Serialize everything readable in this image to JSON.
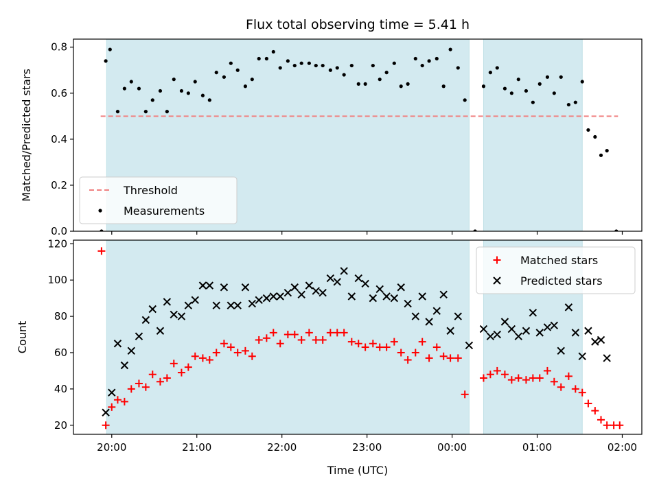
{
  "chart_data": {
    "title": "Flux total observing time = 5.41 h",
    "xlabel": "Time (UTC)",
    "x_unit": "hours since 00:00 UTC",
    "xlim": [
      -4.45,
      2.23
    ],
    "x_ticks": [
      {
        "value": -4,
        "label": "20:00"
      },
      {
        "value": -3,
        "label": "21:00"
      },
      {
        "value": -2,
        "label": "22:00"
      },
      {
        "value": -1,
        "label": "23:00"
      },
      {
        "value": 0,
        "label": "00:00"
      },
      {
        "value": 1,
        "label": "01:00"
      },
      {
        "value": 2,
        "label": "02:00"
      }
    ],
    "observing_windows": [
      {
        "start": -4.06,
        "end": 0.2
      },
      {
        "start": 0.37,
        "end": 1.53
      }
    ],
    "window_color": "#d3eaf0",
    "panels": [
      {
        "name": "ratio",
        "type": "scatter",
        "ylabel": "Matched/Predicted stars",
        "ylim": [
          0,
          0.835
        ],
        "y_ticks": [
          "0.0",
          "0.2",
          "0.4",
          "0.6",
          "0.8"
        ],
        "y_tick_values": [
          0,
          0.2,
          0.4,
          0.6,
          0.8
        ],
        "legend": {
          "position": "lower-left",
          "entries": [
            "Threshold",
            "Measurements"
          ]
        },
        "threshold": {
          "name": "Threshold",
          "value": 0.5,
          "x_start": -4.13,
          "x_end": 1.95,
          "color": "#f08080"
        },
        "series": [
          {
            "name": "Measurements",
            "color": "#000000",
            "marker": "dot",
            "x": [
              -4.12,
              -4.07,
              -4.02,
              -3.93,
              -3.85,
              -3.77,
              -3.68,
              -3.6,
              -3.52,
              -3.43,
              -3.35,
              -3.27,
              -3.18,
              -3.1,
              -3.02,
              -2.93,
              -2.85,
              -2.77,
              -2.68,
              -2.6,
              -2.52,
              -2.43,
              -2.35,
              -2.27,
              -2.18,
              -2.1,
              -2.02,
              -1.93,
              -1.85,
              -1.77,
              -1.68,
              -1.6,
              -1.52,
              -1.43,
              -1.35,
              -1.27,
              -1.18,
              -1.1,
              -1.02,
              -0.93,
              -0.85,
              -0.77,
              -0.68,
              -0.6,
              -0.52,
              -0.43,
              -0.35,
              -0.27,
              -0.18,
              -0.1,
              -0.02,
              0.07,
              0.15,
              0.27,
              0.37,
              0.45,
              0.53,
              0.62,
              0.7,
              0.78,
              0.87,
              0.95,
              1.03,
              1.12,
              1.2,
              1.28,
              1.37,
              1.45,
              1.53,
              1.6,
              1.68,
              1.75,
              1.82,
              1.93
            ],
            "y": [
              0.0,
              0.74,
              0.79,
              0.52,
              0.62,
              0.65,
              0.62,
              0.52,
              0.57,
              0.61,
              0.52,
              0.66,
              0.61,
              0.6,
              0.65,
              0.59,
              0.57,
              0.69,
              0.67,
              0.73,
              0.7,
              0.63,
              0.66,
              0.75,
              0.75,
              0.78,
              0.71,
              0.74,
              0.72,
              0.73,
              0.73,
              0.72,
              0.72,
              0.7,
              0.71,
              0.68,
              0.72,
              0.64,
              0.64,
              0.72,
              0.66,
              0.69,
              0.73,
              0.63,
              0.64,
              0.75,
              0.72,
              0.74,
              0.75,
              0.63,
              0.79,
              0.71,
              0.57,
              0.0,
              0.63,
              0.69,
              0.71,
              0.62,
              0.6,
              0.66,
              0.61,
              0.56,
              0.64,
              0.67,
              0.6,
              0.67,
              0.55,
              0.56,
              0.65,
              0.44,
              0.41,
              0.33,
              0.35,
              0.0
            ]
          }
        ]
      },
      {
        "name": "counts",
        "type": "scatter",
        "ylabel": "Count",
        "ylim": [
          15,
          122
        ],
        "y_ticks": [
          "20",
          "40",
          "60",
          "80",
          "100",
          "120"
        ],
        "y_tick_values": [
          20,
          40,
          60,
          80,
          100,
          120
        ],
        "legend": {
          "position": "upper-right",
          "entries": [
            "Matched stars",
            "Predicted stars"
          ]
        },
        "series": [
          {
            "name": "Matched stars",
            "color": "#ff0000",
            "marker": "plus",
            "x": [
              -4.12,
              -4.07,
              -4.0,
              -3.93,
              -3.85,
              -3.77,
              -3.68,
              -3.6,
              -3.52,
              -3.43,
              -3.35,
              -3.27,
              -3.18,
              -3.1,
              -3.02,
              -2.93,
              -2.85,
              -2.77,
              -2.68,
              -2.6,
              -2.52,
              -2.43,
              -2.35,
              -2.27,
              -2.18,
              -2.1,
              -2.02,
              -1.93,
              -1.85,
              -1.77,
              -1.68,
              -1.6,
              -1.52,
              -1.43,
              -1.35,
              -1.27,
              -1.18,
              -1.1,
              -1.02,
              -0.93,
              -0.85,
              -0.77,
              -0.68,
              -0.6,
              -0.52,
              -0.43,
              -0.35,
              -0.27,
              -0.18,
              -0.1,
              -0.02,
              0.07,
              0.15,
              0.37,
              0.45,
              0.53,
              0.62,
              0.7,
              0.78,
              0.87,
              0.95,
              1.03,
              1.12,
              1.2,
              1.28,
              1.37,
              1.45,
              1.53,
              1.6,
              1.68,
              1.75,
              1.82,
              1.9,
              1.97
            ],
            "y": [
              116,
              20,
              30,
              34,
              33,
              40,
              43,
              41,
              48,
              44,
              46,
              54,
              49,
              52,
              58,
              57,
              56,
              60,
              65,
              63,
              60,
              61,
              58,
              67,
              68,
              71,
              65,
              70,
              70,
              67,
              71,
              67,
              67,
              71,
              71,
              71,
              66,
              65,
              63,
              65,
              63,
              63,
              66,
              60,
              56,
              60,
              66,
              57,
              63,
              58,
              57,
              57,
              37,
              46,
              48,
              50,
              48,
              45,
              46,
              45,
              46,
              46,
              50,
              44,
              41,
              47,
              40,
              38,
              32,
              28,
              23,
              20,
              20,
              20
            ]
          },
          {
            "name": "Predicted stars",
            "color": "#000000",
            "marker": "x",
            "x": [
              -4.07,
              -4.0,
              -3.93,
              -3.85,
              -3.77,
              -3.68,
              -3.6,
              -3.52,
              -3.43,
              -3.35,
              -3.27,
              -3.18,
              -3.1,
              -3.02,
              -2.93,
              -2.85,
              -2.77,
              -2.68,
              -2.6,
              -2.52,
              -2.43,
              -2.35,
              -2.27,
              -2.18,
              -2.1,
              -2.02,
              -1.93,
              -1.85,
              -1.77,
              -1.68,
              -1.6,
              -1.52,
              -1.43,
              -1.35,
              -1.27,
              -1.18,
              -1.1,
              -1.02,
              -0.93,
              -0.85,
              -0.77,
              -0.68,
              -0.6,
              -0.52,
              -0.43,
              -0.35,
              -0.27,
              -0.18,
              -0.1,
              -0.02,
              0.07,
              0.2,
              0.37,
              0.45,
              0.53,
              0.62,
              0.7,
              0.78,
              0.87,
              0.95,
              1.03,
              1.12,
              1.2,
              1.28,
              1.37,
              1.45,
              1.53,
              1.6,
              1.68,
              1.75,
              1.82
            ],
            "y": [
              27,
              38,
              65,
              53,
              61,
              69,
              78,
              84,
              72,
              88,
              81,
              80,
              86,
              89,
              97,
              97,
              86,
              96,
              86,
              86,
              96,
              87,
              89,
              90,
              91,
              91,
              93,
              96,
              92,
              97,
              94,
              93,
              101,
              99,
              105,
              91,
              101,
              98,
              90,
              95,
              91,
              90,
              96,
              87,
              80,
              91,
              77,
              83,
              92,
              72,
              80,
              64,
              73,
              69,
              70,
              77,
              73,
              69,
              72,
              82,
              71,
              74,
              75,
              61,
              85,
              71,
              58,
              72,
              66,
              67,
              57
            ]
          }
        ]
      }
    ]
  }
}
